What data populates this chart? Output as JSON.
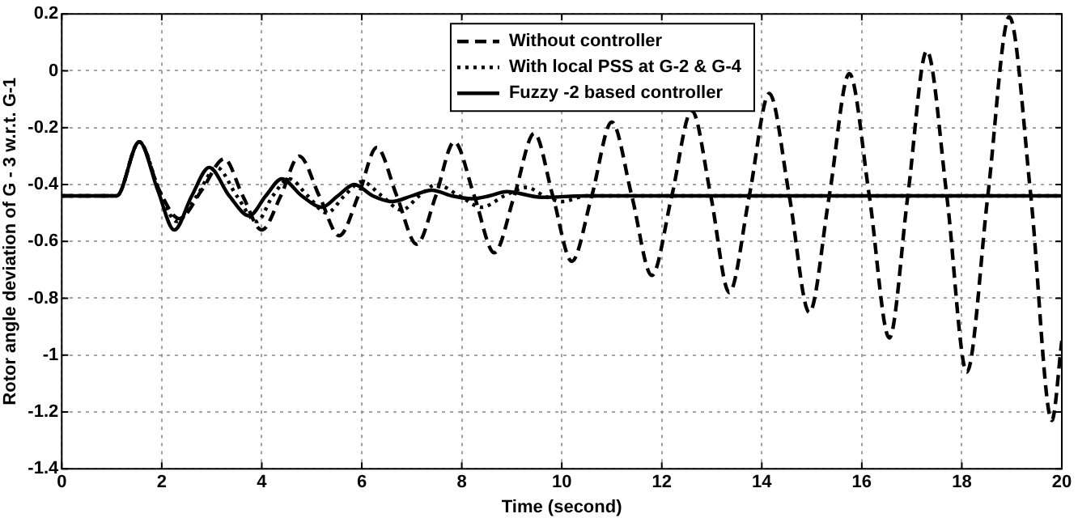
{
  "chart_data": {
    "type": "line",
    "xlabel": "Time (second)",
    "ylabel": "Rotor angle deviation of G - 3 w.r.t. G-1",
    "xlim": [
      0,
      20
    ],
    "xticks": [
      0,
      2,
      4,
      6,
      8,
      10,
      12,
      14,
      16,
      18,
      20
    ],
    "ylim": [
      -1.4,
      0.2
    ],
    "yticks": [
      -1.4,
      -1.2,
      -1,
      -0.8,
      -0.6,
      -0.4,
      -0.2,
      0,
      0.2
    ],
    "grid": true,
    "legend": "top right",
    "marker": "none",
    "series": [
      {
        "name": "Without controller",
        "color": "#000000",
        "line_style": "dashed",
        "x": [
          0,
          1.1,
          1.55,
          1.95,
          2.35,
          2.8,
          3.25,
          3.62,
          4.0,
          4.38,
          4.75,
          5.15,
          5.55,
          5.93,
          6.3,
          6.7,
          7.1,
          7.48,
          7.85,
          8.25,
          8.65,
          9.05,
          9.45,
          9.82,
          10.2,
          10.6,
          11.0,
          11.4,
          11.8,
          12.2,
          12.6,
          12.98,
          13.35,
          13.75,
          14.15,
          14.55,
          14.95,
          15.35,
          15.75,
          16.15,
          16.55,
          16.92,
          17.3,
          17.7,
          18.1,
          18.52,
          18.95,
          19.38,
          19.8,
          20
        ],
        "values": [
          -0.44,
          -0.44,
          -0.25,
          -0.42,
          -0.52,
          -0.42,
          -0.31,
          -0.44,
          -0.56,
          -0.44,
          -0.3,
          -0.44,
          -0.58,
          -0.44,
          -0.27,
          -0.44,
          -0.61,
          -0.44,
          -0.25,
          -0.44,
          -0.64,
          -0.44,
          -0.22,
          -0.44,
          -0.67,
          -0.44,
          -0.18,
          -0.44,
          -0.72,
          -0.44,
          -0.14,
          -0.44,
          -0.78,
          -0.44,
          -0.08,
          -0.44,
          -0.85,
          -0.44,
          -0.01,
          -0.44,
          -0.94,
          -0.44,
          0.07,
          -0.44,
          -1.06,
          -0.44,
          0.19,
          -0.44,
          -1.23,
          -0.95
        ]
      },
      {
        "name": "With local PSS at G-2 & G-4",
        "color": "#000000",
        "line_style": "dotted",
        "x": [
          0,
          1.1,
          1.55,
          1.95,
          2.3,
          2.7,
          3.1,
          3.5,
          3.9,
          4.22,
          4.55,
          4.92,
          5.3,
          5.65,
          6.0,
          6.4,
          6.8,
          7.15,
          7.5,
          7.95,
          8.4,
          8.85,
          9.3,
          9.65,
          10.0,
          10.5,
          12,
          14,
          16,
          18,
          20
        ],
        "values": [
          -0.44,
          -0.44,
          -0.25,
          -0.42,
          -0.53,
          -0.44,
          -0.34,
          -0.44,
          -0.53,
          -0.44,
          -0.38,
          -0.44,
          -0.5,
          -0.44,
          -0.39,
          -0.44,
          -0.49,
          -0.44,
          -0.4,
          -0.44,
          -0.48,
          -0.44,
          -0.41,
          -0.44,
          -0.46,
          -0.44,
          -0.44,
          -0.44,
          -0.44,
          -0.44,
          -0.44
        ]
      },
      {
        "name": "Fuzzy -2 based controller",
        "color": "#000000",
        "line_style": "solid",
        "x": [
          0,
          1.1,
          1.55,
          1.92,
          2.25,
          2.6,
          2.95,
          3.35,
          3.75,
          4.08,
          4.4,
          4.8,
          5.2,
          5.52,
          5.85,
          6.22,
          6.6,
          7.0,
          7.4,
          7.8,
          8.2,
          8.55,
          8.9,
          9.6,
          10.5,
          12,
          14,
          16,
          18,
          20
        ],
        "values": [
          -0.44,
          -0.44,
          -0.25,
          -0.42,
          -0.56,
          -0.44,
          -0.34,
          -0.44,
          -0.51,
          -0.44,
          -0.38,
          -0.44,
          -0.48,
          -0.44,
          -0.4,
          -0.44,
          -0.46,
          -0.44,
          -0.42,
          -0.44,
          -0.45,
          -0.44,
          -0.425,
          -0.445,
          -0.44,
          -0.44,
          -0.44,
          -0.44,
          -0.44,
          -0.44
        ]
      }
    ]
  }
}
